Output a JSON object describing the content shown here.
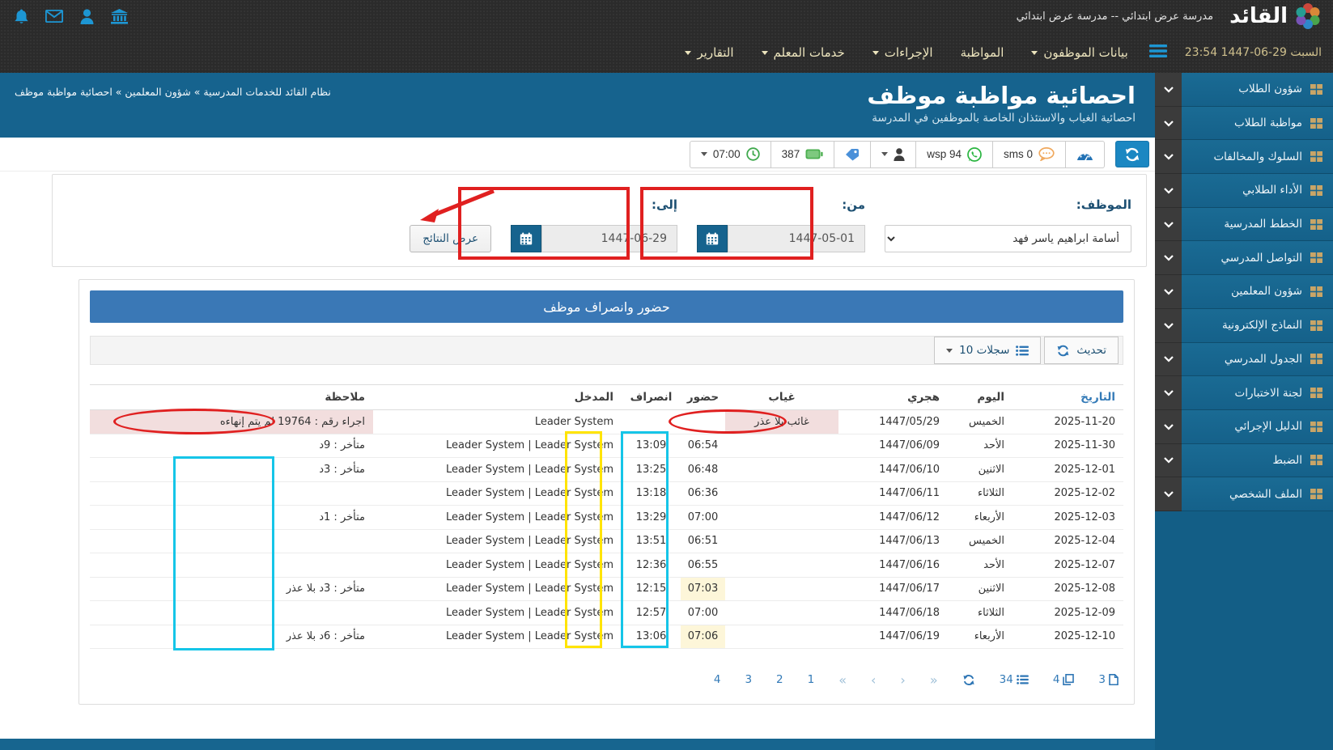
{
  "topbar": {
    "brand": "القائد",
    "school_name": "مدرسة عرض ابتدائي -- مدرسة عرض ابتدائي",
    "datetime": "23:54 1447-06-29 السبت",
    "menu": [
      {
        "label": "بيانات الموظفون",
        "caret": true
      },
      {
        "label": "المواظبة",
        "caret": false
      },
      {
        "label": "الإجراءات",
        "caret": true
      },
      {
        "label": "خدمات المعلم",
        "caret": true
      },
      {
        "label": "التقارير",
        "caret": true
      }
    ]
  },
  "page_header": {
    "title": "احصائية مواظبة موظف",
    "subtitle": "احصائية الغياب والاستئذان الخاصة بالموظفين في المدرسة",
    "breadcrumb": "نظام القائد للخدمات المدرسية  »  شؤون المعلمين  »  احصائية مواظبة موظف"
  },
  "quickbar": {
    "time": "07:00",
    "count": "387",
    "wsp": "wsp 94",
    "sms": "sms 0"
  },
  "filters": {
    "employee_label": "الموظف:",
    "employee_value": "أسامة ابراهيم ياسر فهد",
    "from_label": "من:",
    "from_value": "1447-05-01",
    "to_label": "إلى:",
    "to_value": "1447-06-29",
    "submit_label": "عرض النتائج"
  },
  "panel": {
    "title": "حضور وانصراف موظف",
    "refresh_label": "تحديث",
    "records_label": "10 سجلات"
  },
  "table": {
    "headers": [
      "التاريخ",
      "اليوم",
      "هجري",
      "غياب",
      "حضور",
      "انصراف",
      "المدخل",
      "ملاحظة"
    ],
    "rows": [
      {
        "date": "2025-11-20",
        "day": "الخميس",
        "hijri": "1447/05/29",
        "absent": "غائب بلا عذر",
        "present": "",
        "leave": "",
        "entry": "Leader System",
        "note": "اجراء رقم : 19764 لم يتم إنهاءه",
        "absent_row": true,
        "present_hl": false
      },
      {
        "date": "2025-11-30",
        "day": "الأحد",
        "hijri": "1447/06/09",
        "absent": "",
        "present": "06:54",
        "leave": "13:09",
        "entry": "Leader System | Leader System",
        "note": "متأخر : 9د",
        "absent_row": false,
        "present_hl": false
      },
      {
        "date": "2025-12-01",
        "day": "الاثنين",
        "hijri": "1447/06/10",
        "absent": "",
        "present": "06:48",
        "leave": "13:25",
        "entry": "Leader System | Leader System",
        "note": "متأخر : 3د",
        "absent_row": false,
        "present_hl": false
      },
      {
        "date": "2025-12-02",
        "day": "الثلاثاء",
        "hijri": "1447/06/11",
        "absent": "",
        "present": "06:36",
        "leave": "13:18",
        "entry": "Leader System | Leader System",
        "note": "",
        "absent_row": false,
        "present_hl": false
      },
      {
        "date": "2025-12-03",
        "day": "الأربعاء",
        "hijri": "1447/06/12",
        "absent": "",
        "present": "07:00",
        "leave": "13:29",
        "entry": "Leader System | Leader System",
        "note": "متأخر : 1د",
        "absent_row": false,
        "present_hl": false
      },
      {
        "date": "2025-12-04",
        "day": "الخميس",
        "hijri": "1447/06/13",
        "absent": "",
        "present": "06:51",
        "leave": "13:51",
        "entry": "Leader System | Leader System",
        "note": "",
        "absent_row": false,
        "present_hl": false
      },
      {
        "date": "2025-12-07",
        "day": "الأحد",
        "hijri": "1447/06/16",
        "absent": "",
        "present": "06:55",
        "leave": "12:36",
        "entry": "Leader System | Leader System",
        "note": "",
        "absent_row": false,
        "present_hl": false
      },
      {
        "date": "2025-12-08",
        "day": "الاثنين",
        "hijri": "1447/06/17",
        "absent": "",
        "present": "07:03",
        "leave": "12:15",
        "entry": "Leader System | Leader System",
        "note": "متأخر : 3د بلا عذر",
        "absent_row": false,
        "present_hl": true
      },
      {
        "date": "2025-12-09",
        "day": "الثلاثاء",
        "hijri": "1447/06/18",
        "absent": "",
        "present": "07:00",
        "leave": "12:57",
        "entry": "Leader System | Leader System",
        "note": "",
        "absent_row": false,
        "present_hl": false
      },
      {
        "date": "2025-12-10",
        "day": "الأربعاء",
        "hijri": "1447/06/19",
        "absent": "",
        "present": "07:06",
        "leave": "13:06",
        "entry": "Leader System | Leader System",
        "note": "متأخر : 6د بلا عذر",
        "absent_row": false,
        "present_hl": true
      }
    ]
  },
  "pagination": {
    "pages": [
      "4",
      "3",
      "2",
      "1"
    ],
    "nav": [
      "«",
      "‹",
      "›",
      "»"
    ],
    "stats": [
      {
        "value": "34",
        "icon": "list"
      },
      {
        "value": "4",
        "icon": "copy"
      },
      {
        "value": "3",
        "icon": "file"
      }
    ]
  },
  "sidebar": {
    "items": [
      {
        "label": "شؤون الطلاب"
      },
      {
        "label": "مواظبة الطلاب"
      },
      {
        "label": "السلوك والمخالفات"
      },
      {
        "label": "الأداء الطلابي"
      },
      {
        "label": "الخطط المدرسية"
      },
      {
        "label": "التواصل المدرسي"
      },
      {
        "label": "شؤون المعلمين"
      },
      {
        "label": "النماذج الإلكترونية"
      },
      {
        "label": "الجدول المدرسي"
      },
      {
        "label": "لجنة الاختبارات"
      },
      {
        "label": "الدليل الإجرائي"
      },
      {
        "label": "الضبط"
      },
      {
        "label": "الملف الشخصي"
      }
    ]
  },
  "colors": {
    "accent_teal": "#16638e",
    "panel_blue": "#3a78b6",
    "link_blue": "#337ab7",
    "absent_pink": "#f2dede",
    "late_yellow": "#fdf6d9",
    "annotation_red": "#e02020",
    "annotation_yellow": "#ffe400",
    "annotation_cyan": "#15c5e8"
  }
}
